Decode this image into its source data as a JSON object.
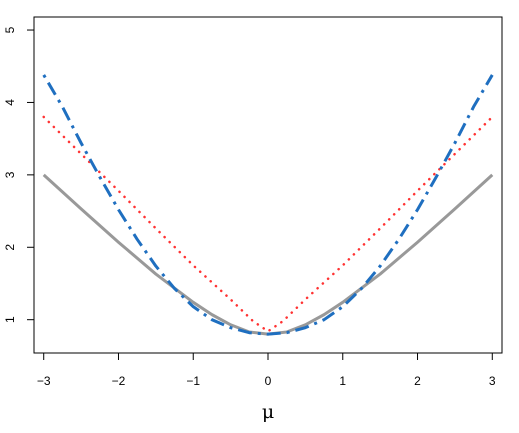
{
  "chart_data": {
    "type": "line",
    "title": "",
    "xlabel": "μ",
    "ylabel": "",
    "xlim": [
      -3.13,
      3.13
    ],
    "ylim": [
      0.54,
      5.18
    ],
    "x_ticks": [
      -3,
      -2,
      -1,
      0,
      1,
      2,
      3
    ],
    "x_tick_labels": [
      "−3",
      "−2",
      "−1",
      "0",
      "1",
      "2",
      "3"
    ],
    "y_ticks": [
      1,
      2,
      3,
      4,
      5
    ],
    "y_tick_labels": [
      "1",
      "2",
      "3",
      "4",
      "5"
    ],
    "grid": false,
    "series": [
      {
        "color": "#999999",
        "style": "solid",
        "x": [
          -3,
          -2.5,
          -2,
          -1.5,
          -1,
          -0.75,
          -0.5,
          -0.25,
          0,
          0.25,
          0.5,
          0.75,
          1,
          1.5,
          2,
          2.5,
          3
        ],
        "y": [
          3.0,
          2.53,
          2.07,
          1.63,
          1.24,
          1.07,
          0.93,
          0.83,
          0.8,
          0.83,
          0.93,
          1.07,
          1.24,
          1.63,
          2.07,
          2.53,
          3.0
        ]
      },
      {
        "color": "#ff3333",
        "style": "dotted",
        "x": [
          -3,
          -2.5,
          -2,
          -1.5,
          -1,
          -0.5,
          -0.2,
          0,
          0.2,
          0.5,
          1,
          1.5,
          2,
          2.5,
          3
        ],
        "y": [
          3.8,
          3.29,
          2.78,
          2.26,
          1.75,
          1.28,
          0.98,
          0.84,
          0.98,
          1.28,
          1.75,
          2.26,
          2.78,
          3.29,
          3.8
        ]
      },
      {
        "color": "#1f6fc0",
        "style": "dotdash",
        "x": [
          -3,
          -2.75,
          -2.5,
          -2.25,
          -2,
          -1.75,
          -1.5,
          -1.25,
          -1,
          -0.75,
          -0.5,
          -0.25,
          0,
          0.25,
          0.5,
          0.75,
          1,
          1.25,
          1.5,
          1.75,
          2,
          2.25,
          2.5,
          2.75,
          3
        ],
        "y": [
          4.38,
          3.94,
          3.44,
          2.97,
          2.52,
          2.11,
          1.74,
          1.43,
          1.18,
          1.0,
          0.89,
          0.82,
          0.8,
          0.82,
          0.89,
          1.0,
          1.18,
          1.43,
          1.74,
          2.11,
          2.52,
          2.97,
          3.44,
          3.94,
          4.38
        ]
      }
    ]
  }
}
